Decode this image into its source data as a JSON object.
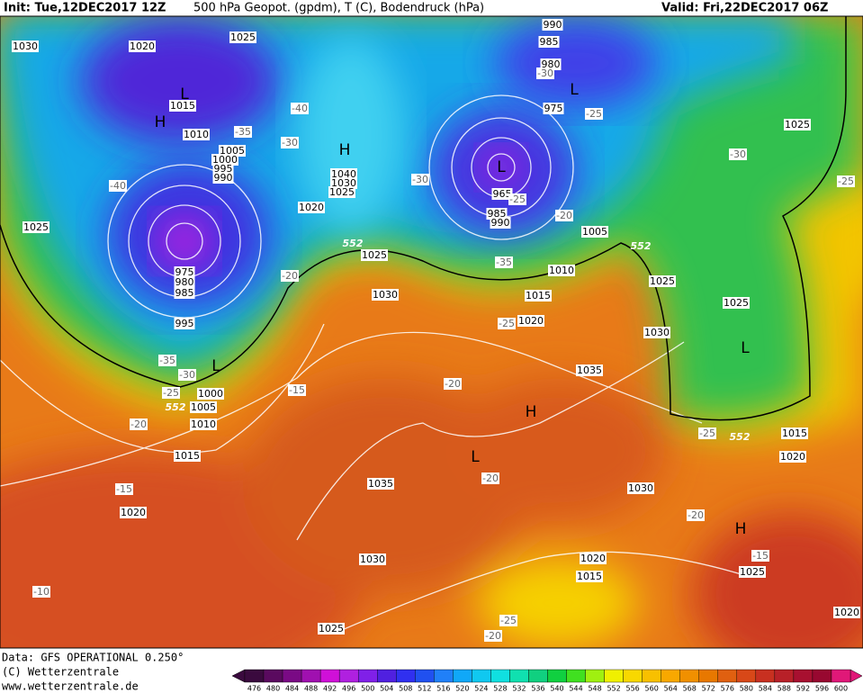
{
  "header": {
    "init": "Init: Tue,12DEC2017 12Z",
    "title": "500 hPa Geopot. (gpdm), T (C), Bodendruck (hPa)",
    "valid": "Valid: Fri,22DEC2017 06Z"
  },
  "map": {
    "isobar_labels": [
      "1030",
      "1020",
      "1025",
      "1015",
      "1010",
      "1005",
      "1000",
      "995",
      "990",
      "1025",
      "975",
      "980",
      "985",
      "995",
      "1000",
      "1005",
      "1010",
      "1015",
      "1020",
      "1040",
      "1030",
      "1025",
      "1020",
      "1025",
      "1030",
      "990",
      "985",
      "980",
      "975",
      "965",
      "985",
      "990",
      "1005",
      "1010",
      "1015",
      "1020",
      "1025",
      "1030",
      "1035",
      "1025",
      "1025",
      "1015",
      "1020",
      "1030",
      "1035",
      "1030",
      "1020",
      "1015",
      "1025",
      "1020",
      "1025"
    ],
    "temperature_labels": [
      "-30",
      "-25",
      "-40",
      "-35",
      "-30",
      "-40",
      "-30",
      "-25",
      "-20",
      "-30",
      "-25",
      "-20",
      "-35",
      "-25",
      "-35",
      "-30",
      "-25",
      "-15",
      "-20",
      "-20",
      "-15",
      "-20",
      "-25",
      "-20",
      "-15",
      "-10",
      "-25",
      "-20"
    ],
    "contour_552_labels": [
      "552",
      "552",
      "552",
      "552"
    ],
    "pressure_centers": [
      "H",
      "L",
      "H",
      "L",
      "L",
      "L",
      "H",
      "L",
      "L",
      "H"
    ]
  },
  "footer": {
    "lines": [
      "Data: GFS OPERATIONAL 0.250°",
      "(C) Wetterzentrale",
      "www.wetterzentrale.de"
    ]
  },
  "colorbar": {
    "ticks": [
      476,
      480,
      484,
      488,
      492,
      496,
      500,
      504,
      508,
      512,
      516,
      520,
      524,
      528,
      532,
      536,
      540,
      544,
      548,
      552,
      556,
      560,
      564,
      568,
      572,
      576,
      580,
      584,
      588,
      592,
      596,
      600
    ],
    "colors": [
      "#3a0a3e",
      "#5a0a5f",
      "#7a0a85",
      "#a010b0",
      "#d010d8",
      "#b020e0",
      "#8020e8",
      "#5020e0",
      "#3030f0",
      "#2050f0",
      "#2080f8",
      "#10a8f8",
      "#10c8f0",
      "#10e0e0",
      "#10e0b0",
      "#10d080",
      "#10d040",
      "#40e020",
      "#a0f010",
      "#f0f000",
      "#f8d800",
      "#f8c000",
      "#f8a800",
      "#f09000",
      "#e87800",
      "#e06010",
      "#d84818",
      "#c83020",
      "#b82028",
      "#a81030",
      "#980830",
      "#e01878"
    ]
  }
}
